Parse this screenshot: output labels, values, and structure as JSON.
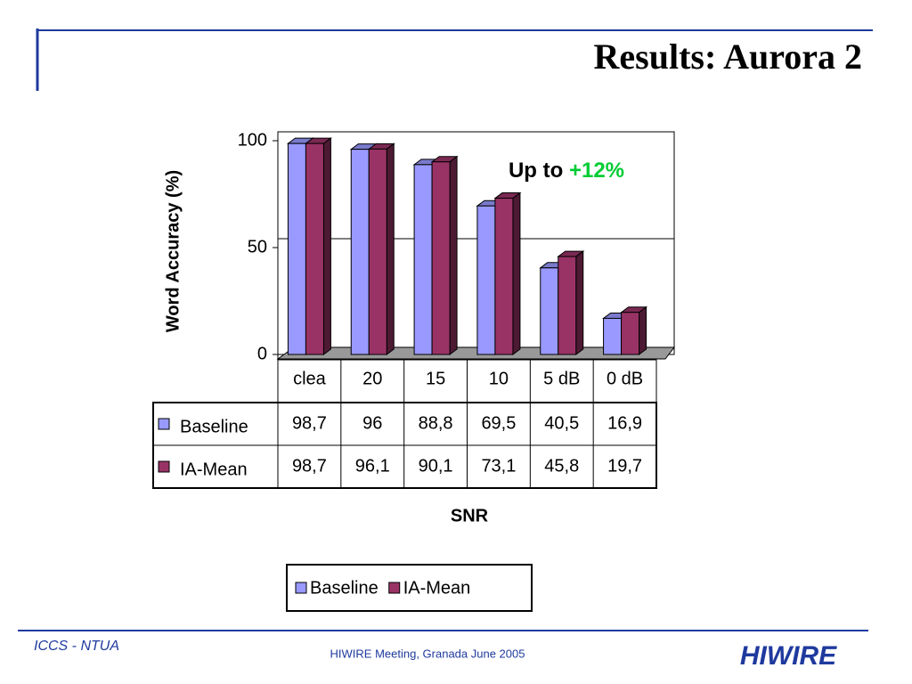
{
  "header": {
    "title": "Results: Aurora 2"
  },
  "footer": {
    "left": "ICCS - NTUA",
    "center": "HIWIRE Meeting, Granada June 2005",
    "logo": "HIWIRE"
  },
  "chart_data": {
    "type": "bar",
    "categories": [
      "clea",
      "20",
      "15",
      "10",
      "5 dB",
      "0 dB"
    ],
    "series": [
      {
        "name": "Baseline",
        "color": "#9999ff",
        "values": [
          98.7,
          96,
          88.8,
          69.5,
          40.5,
          16.9
        ],
        "value_labels": [
          "98,7",
          "96",
          "88,8",
          "69,5",
          "40,5",
          "16,9"
        ]
      },
      {
        "name": "IA-Mean",
        "color": "#993366",
        "values": [
          98.7,
          96.1,
          90.1,
          73.1,
          45.8,
          19.7
        ],
        "value_labels": [
          "98,7",
          "96,1",
          "90,1",
          "73,1",
          "45,8",
          "19,7"
        ]
      }
    ],
    "ylim": [
      0,
      100
    ],
    "yticks": [
      0,
      50,
      100
    ],
    "grid": true,
    "y_label": "Word Accuracy (%)",
    "x_label": "SNR",
    "annotation": [
      "Up to",
      "+12%"
    ],
    "annotation_color": "#00cc33",
    "legend": "bottom"
  }
}
